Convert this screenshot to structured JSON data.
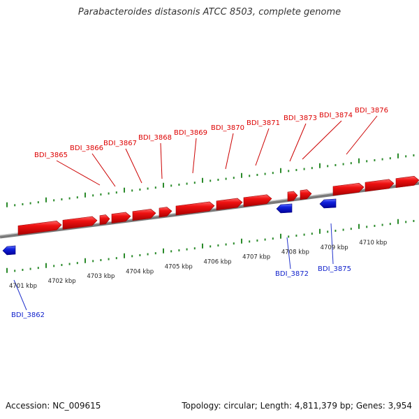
{
  "title": "Parabacteroides distasonis ATCC 8503, complete genome",
  "footer": {
    "accession": "Accession: NC_009615",
    "summary": "Topology: circular; Length: 4,811,379 bp; Genes: 3,954"
  },
  "colors": {
    "forward": "#ee1111",
    "reverse": "#1122dd",
    "tick": "#228822",
    "backbone": "#888888"
  },
  "kbp_labels": [
    "4701 kbp",
    "4702 kbp",
    "4703 kbp",
    "4704 kbp",
    "4705 kbp",
    "4706 kbp",
    "4707 kbp",
    "4708 kbp",
    "4709 kbp",
    "4710 kbp"
  ],
  "forward_genes": [
    {
      "label": "BDI_3865"
    },
    {
      "label": "BDI_3866"
    },
    {
      "label": "BDI_3867"
    },
    {
      "label": "BDI_3868"
    },
    {
      "label": "BDI_3869"
    },
    {
      "label": "BDI_3870"
    },
    {
      "label": "BDI_3871"
    },
    {
      "label": "BDI_3873"
    },
    {
      "label": "BDI_3874"
    },
    {
      "label": "BDI_3876"
    }
  ],
  "reverse_genes": [
    {
      "label": "BDI_3862"
    },
    {
      "label": "BDI_3872"
    },
    {
      "label": "BDI_3875"
    }
  ]
}
